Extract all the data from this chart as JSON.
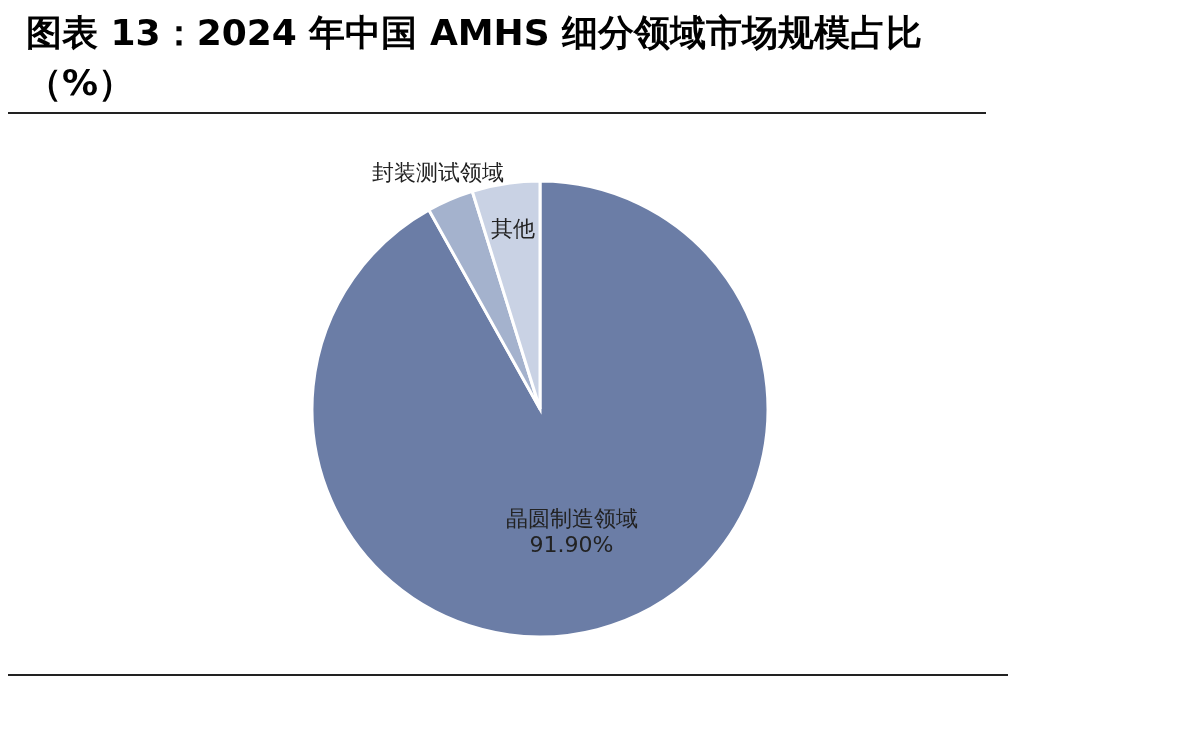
{
  "chart_data": {
    "type": "pie",
    "title": "图表 13：2024 年中国 AMHS 细分领域市场规模占比（%）",
    "categories": [
      "晶圆制造领域",
      "封装测试领域",
      "其他"
    ],
    "values": [
      91.9,
      3.3,
      4.8
    ],
    "colors": [
      "#6b7da6",
      "#a4b2cd",
      "#c9d2e4"
    ],
    "value_labels": [
      "91.90%",
      null,
      null
    ]
  }
}
